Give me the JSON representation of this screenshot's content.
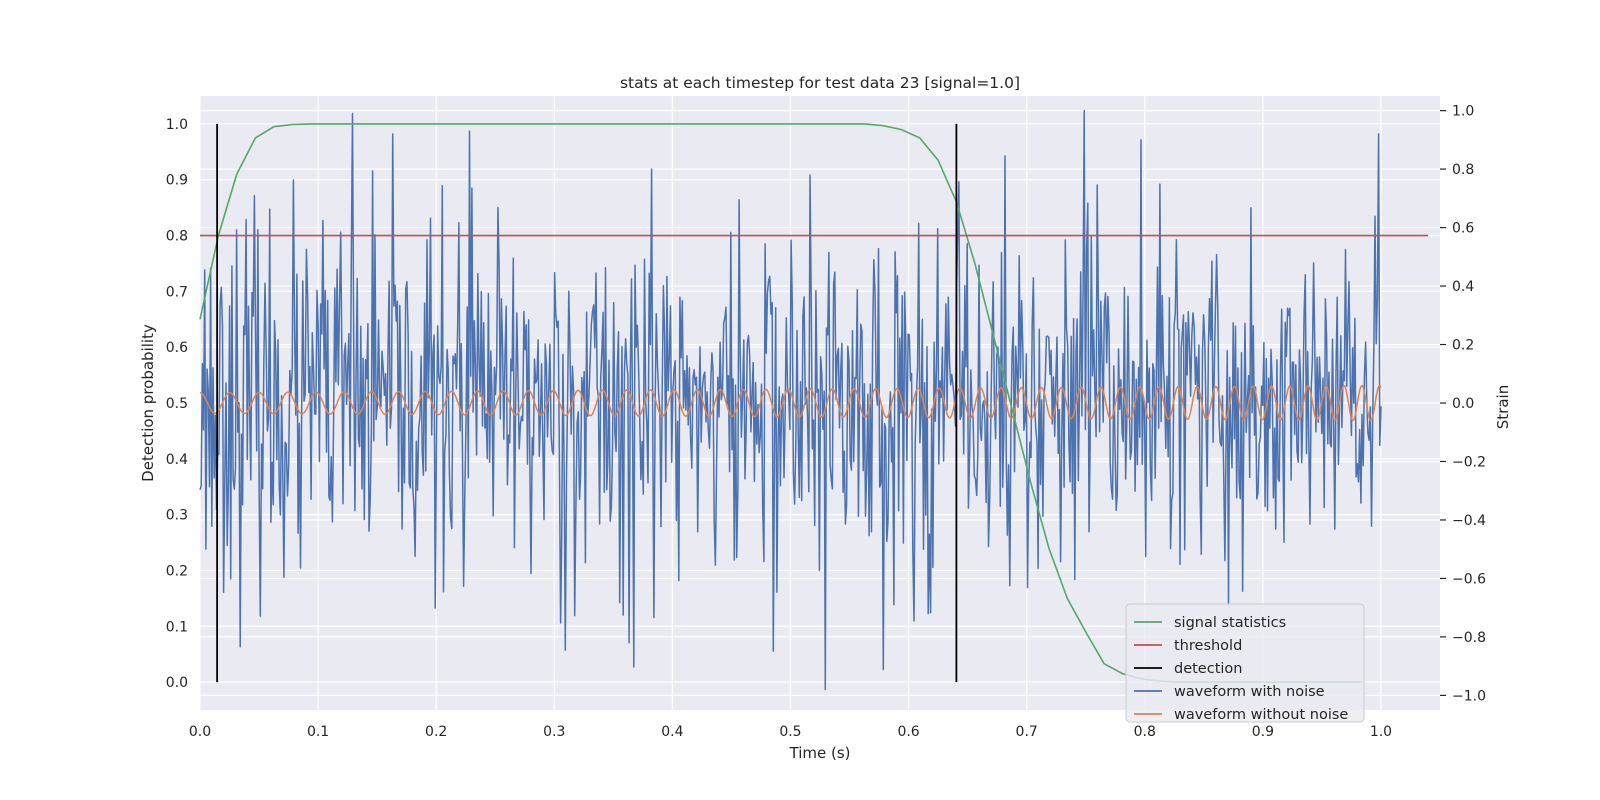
{
  "chart_data": {
    "type": "line",
    "title": "stats at each timestep for test data 23 [signal=1.0]",
    "xlabel": "Time (s)",
    "ylabel_left": "Detection probability",
    "ylabel_right": "Strain",
    "xlim": [
      0.0,
      1.05
    ],
    "ylim_left": [
      -0.05,
      1.05
    ],
    "ylim_right": [
      -1.05,
      1.05
    ],
    "x_ticks": [
      "0.0",
      "0.1",
      "0.2",
      "0.3",
      "0.4",
      "0.5",
      "0.6",
      "0.7",
      "0.8",
      "0.9",
      "1.0"
    ],
    "y_ticks_left": [
      "0.0",
      "0.1",
      "0.2",
      "0.3",
      "0.4",
      "0.5",
      "0.6",
      "0.7",
      "0.8",
      "0.9",
      "1.0"
    ],
    "y_ticks_right": [
      "−1.0",
      "−0.8",
      "−0.6",
      "−0.4",
      "−0.2",
      "0.0",
      "0.2",
      "0.4",
      "0.6",
      "0.8",
      "1.0"
    ],
    "grid": true,
    "legend_position": "lower right",
    "colors": {
      "plot_bg": "#eaeaf2",
      "grid": "#ffffff",
      "signal_statistics": "#55a868",
      "threshold": "#c44e52",
      "detection": "#000000",
      "waveform_with_noise": "#4c72b0",
      "waveform_without_noise": "#dd8452"
    },
    "series": [
      {
        "name": "signal statistics",
        "axis": "left",
        "x": [
          0.0,
          0.0156,
          0.0312,
          0.0469,
          0.0625,
          0.0781,
          0.0938,
          0.5625,
          0.5781,
          0.5938,
          0.6094,
          0.625,
          0.6406,
          0.6562,
          0.6719,
          0.6875,
          0.7031,
          0.7188,
          0.7344,
          0.75,
          0.7656,
          0.7812,
          0.7969,
          0.8125,
          0.8281,
          0.9844
        ],
        "y": [
          0.65,
          0.8,
          0.91,
          0.975,
          0.995,
          0.999,
          1.0,
          1.0,
          0.997,
          0.99,
          0.975,
          0.935,
          0.86,
          0.75,
          0.62,
          0.49,
          0.36,
          0.24,
          0.15,
          0.09,
          0.033,
          0.015,
          0.006,
          0.002,
          0.0,
          0.0
        ]
      },
      {
        "name": "threshold",
        "axis": "left",
        "x": [
          0.0,
          1.04
        ],
        "y": [
          0.8,
          0.8
        ]
      },
      {
        "name": "detection",
        "axis": "left",
        "x_values": [
          0.0145,
          0.6405
        ],
        "y_range": [
          0.0,
          1.0
        ]
      },
      {
        "name": "waveform with noise",
        "axis": "right",
        "n_points": 1000,
        "x_range": [
          0.0,
          1.0
        ],
        "y_range": [
          -1.0,
          1.0
        ],
        "peaks": [
          {
            "x": 0.129,
            "y": 0.99
          },
          {
            "x": 0.228,
            "y": 0.93
          },
          {
            "x": 0.382,
            "y": 0.8
          },
          {
            "x": 0.53,
            "y": -0.98
          },
          {
            "x": 0.749,
            "y": 1.0
          },
          {
            "x": 0.797,
            "y": 0.9
          },
          {
            "x": 0.363,
            "y": -0.82
          }
        ]
      },
      {
        "name": "waveform without noise",
        "axis": "right",
        "x_range": [
          0.0,
          1.0
        ],
        "approx_cycles": 46,
        "amplitude_start": 0.035,
        "amplitude_end": 0.06
      }
    ],
    "legend": [
      "signal statistics",
      "threshold",
      "detection",
      "waveform with noise",
      "waveform without noise"
    ]
  }
}
